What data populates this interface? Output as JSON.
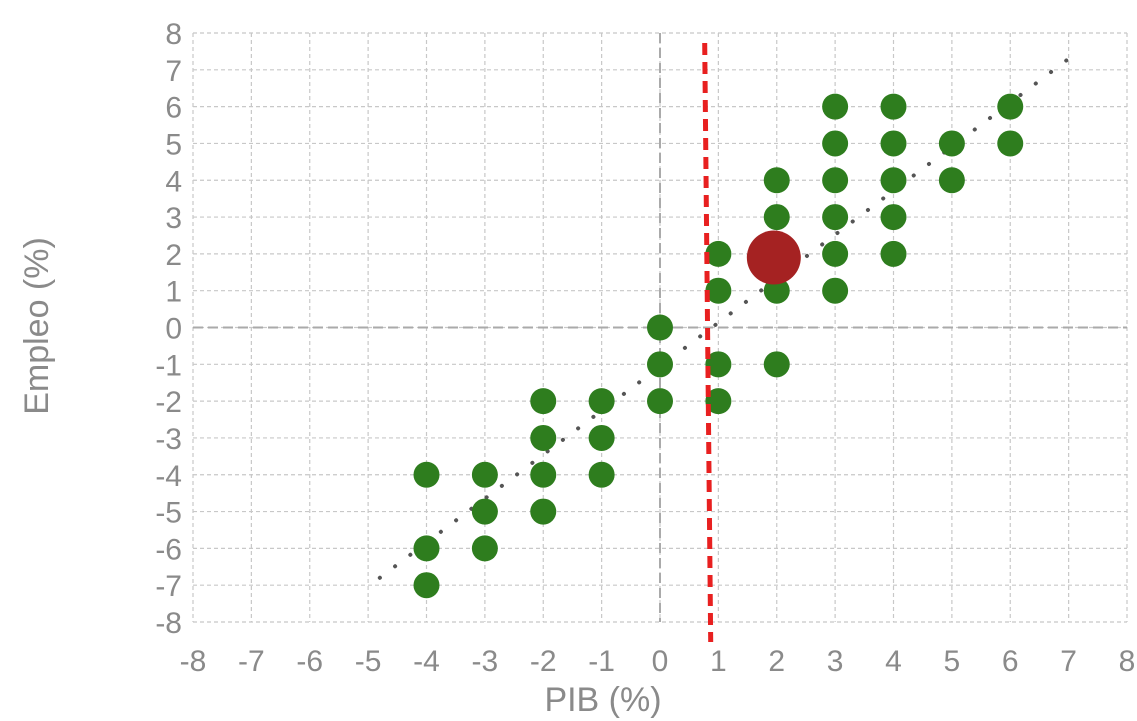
{
  "chart_data": {
    "type": "scatter",
    "xlabel": "PIB (%)",
    "ylabel": "Empleo (%)",
    "xlim": [
      -8,
      8
    ],
    "ylim": [
      -8,
      8
    ],
    "xticks": [
      "-8",
      "-7",
      "-6",
      "-5",
      "-4",
      "-3",
      "-2",
      "-1",
      "0",
      "1",
      "2",
      "3",
      "4",
      "5",
      "6",
      "7",
      "8"
    ],
    "yticks": [
      "8",
      "7",
      "6",
      "5",
      "4",
      "3",
      "2",
      "1",
      "0",
      "-1",
      "-2",
      "-3",
      "-4",
      "-5",
      "-6",
      "-7",
      "-8"
    ],
    "grid": true,
    "series": [
      {
        "color": "#2e7d1e",
        "points": [
          [
            -4,
            -4
          ],
          [
            -4,
            -6
          ],
          [
            -4,
            -7
          ],
          [
            -3,
            -4
          ],
          [
            -3,
            -5
          ],
          [
            -3,
            -6
          ],
          [
            -2,
            -2
          ],
          [
            -2,
            -3
          ],
          [
            -2,
            -4
          ],
          [
            -2,
            -5
          ],
          [
            -1,
            -2
          ],
          [
            -1,
            -3
          ],
          [
            -1,
            -4
          ],
          [
            0,
            0
          ],
          [
            0,
            -1
          ],
          [
            0,
            -2
          ],
          [
            1,
            2
          ],
          [
            1,
            1
          ],
          [
            1,
            -1
          ],
          [
            1,
            -2
          ],
          [
            2,
            4
          ],
          [
            2,
            3
          ],
          [
            2,
            1
          ],
          [
            2,
            -1
          ],
          [
            3,
            6
          ],
          [
            3,
            5
          ],
          [
            3,
            4
          ],
          [
            3,
            3
          ],
          [
            3,
            2
          ],
          [
            3,
            1
          ],
          [
            4,
            6
          ],
          [
            4,
            5
          ],
          [
            4,
            4
          ],
          [
            4,
            3
          ],
          [
            4,
            2
          ],
          [
            5,
            5
          ],
          [
            5,
            4
          ],
          [
            6,
            6
          ],
          [
            6,
            5
          ]
        ]
      },
      {
        "color": "#a52222",
        "points": [
          [
            1.95,
            1.9
          ]
        ]
      }
    ],
    "trendline": {
      "from": [
        -4.8,
        -6.8
      ],
      "to": [
        7,
        7.3
      ],
      "color": "#555555",
      "style": "dotted"
    },
    "reference_line": {
      "x": 0.8,
      "color": "#e82020",
      "style": "dashed"
    },
    "zero_lines": {
      "color": "#aaaaaa"
    }
  }
}
